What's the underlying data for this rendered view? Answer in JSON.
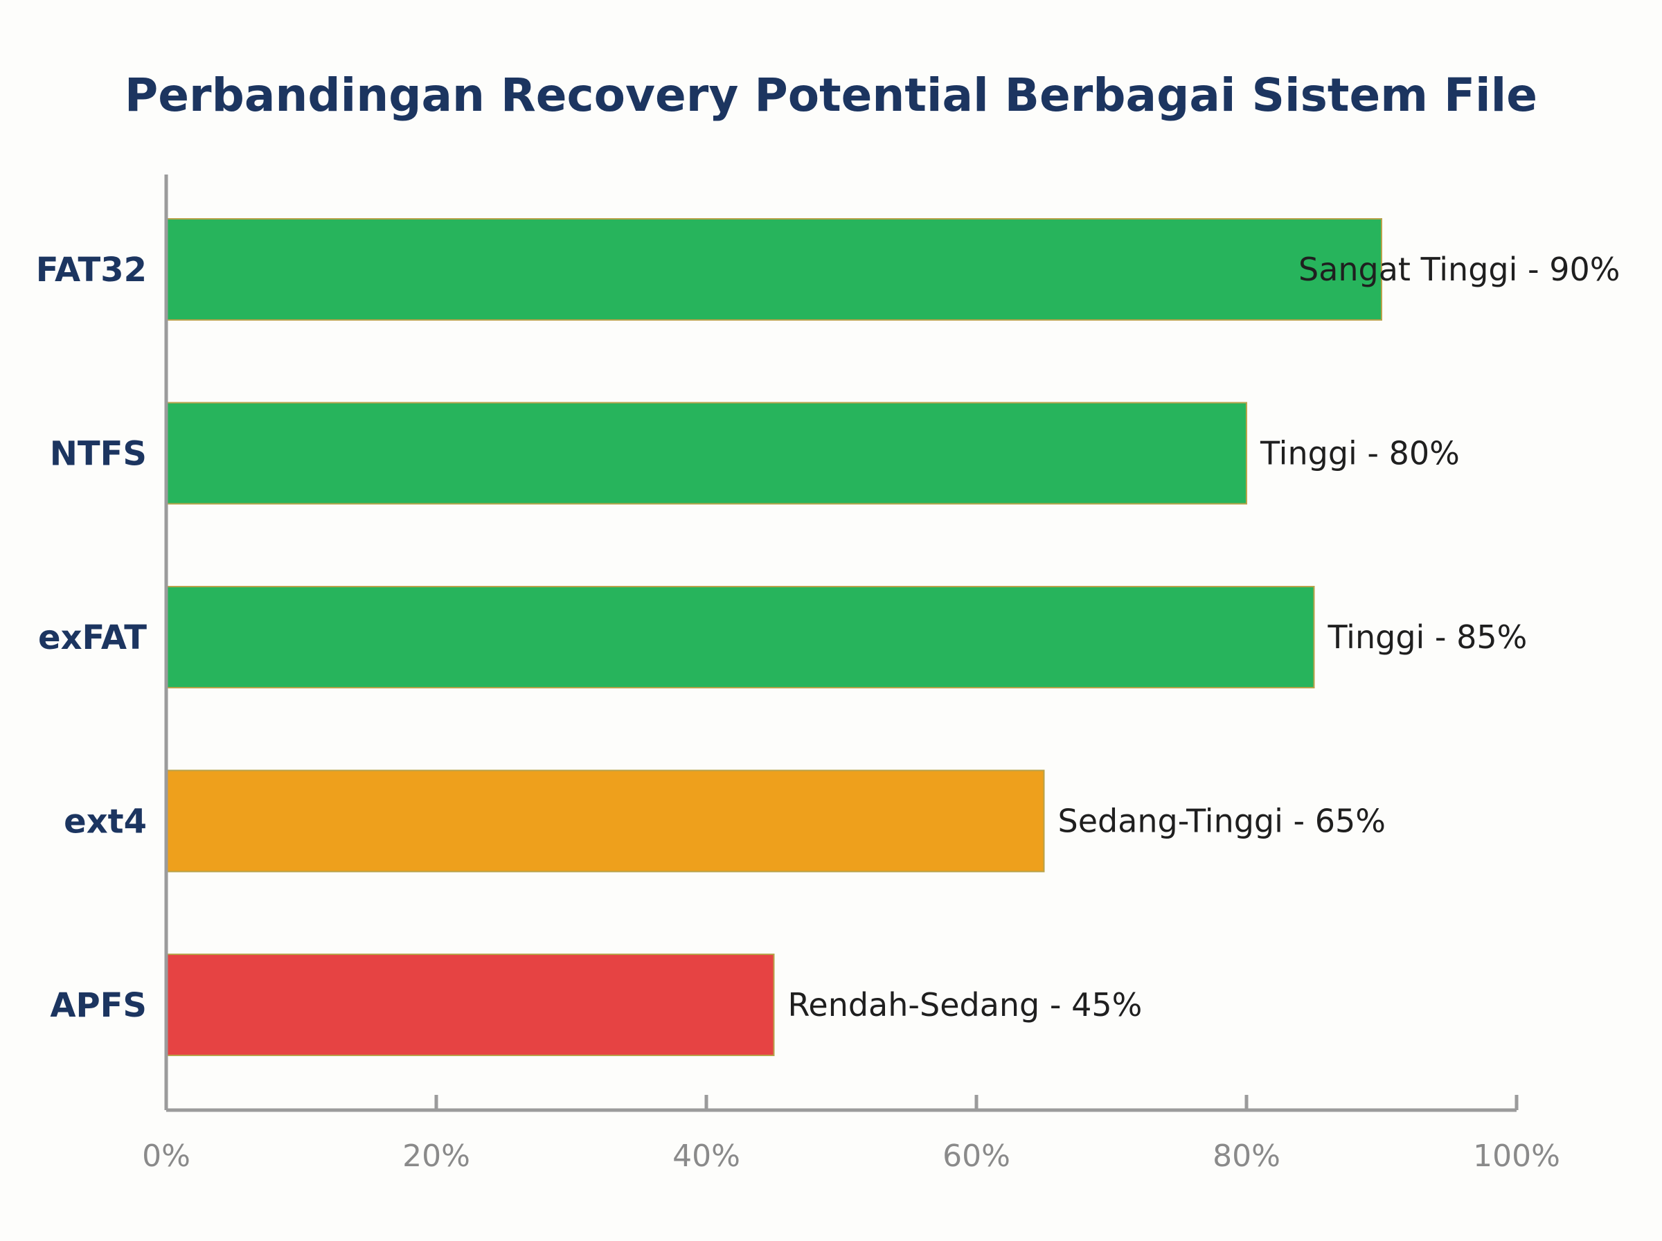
{
  "chart_data": {
    "type": "bar",
    "orientation": "horizontal",
    "title": "Perbandingan Recovery Potential Berbagai Sistem File",
    "xlabel": "",
    "ylabel": "",
    "xlim": [
      0,
      100
    ],
    "x_ticks": [
      0,
      20,
      40,
      60,
      80,
      100
    ],
    "x_tick_labels": [
      "0%",
      "20%",
      "40%",
      "60%",
      "80%",
      "100%"
    ],
    "grid": false,
    "legend": "none",
    "categories": [
      "FAT32",
      "NTFS",
      "exFAT",
      "ext4",
      "APFS"
    ],
    "values": [
      90,
      80,
      85,
      65,
      45
    ],
    "data_labels": [
      "Sangat Tinggi - 90%",
      "Tinggi - 80%",
      "Tinggi - 85%",
      "Sedang-Tinggi - 65%",
      "Rendah-Sedang - 45%"
    ],
    "colors": [
      "#27b45c",
      "#27b45c",
      "#27b45c",
      "#eea01c",
      "#e64343"
    ]
  }
}
